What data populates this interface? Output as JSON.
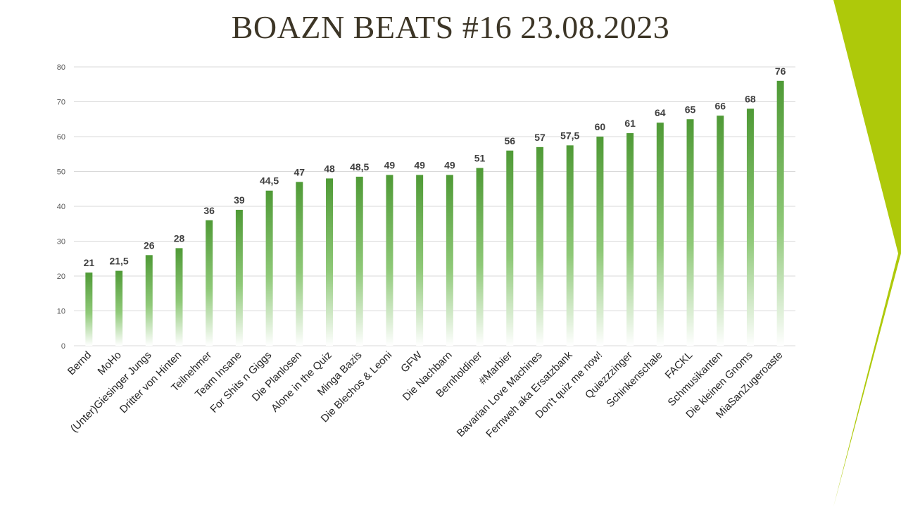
{
  "title": "BOAZN BEATS #16 23.08.2023",
  "colors": {
    "bar_top": "#4f9a36",
    "bar_bottom": "#ffffff",
    "accent": "#aec90a",
    "title": "#3c3526",
    "grid": "#d9d9d9"
  },
  "chart_data": {
    "type": "bar",
    "title": "BOAZN BEATS #16 23.08.2023",
    "xlabel": "",
    "ylabel": "",
    "ylim": [
      0,
      80
    ],
    "yticks": [
      0,
      10,
      20,
      30,
      40,
      50,
      60,
      70,
      80
    ],
    "grid": true,
    "categories": [
      "Bernd",
      "MoHo",
      "(Unter)Giesinger Jungs",
      "Dritter von Hinten",
      "Teilnehmer",
      "Team Insane",
      "For Shits n Giggs",
      "Die Planlosen",
      "Alone in the Quiz",
      "Minga Bazis",
      "Die Blechos & Leoni",
      "GFW",
      "Die Nachbarn",
      "Bernholdiner",
      "#Marbier",
      "Bavarian Love Machines",
      "Fernweh aka Ersatzbank",
      "Don't quiz me now!",
      "Quiezzzinger",
      "Schinkenschale",
      "FACKL",
      "Schmusikanten",
      "Die kleinen Gnoms",
      "MiaSanZugeroaste"
    ],
    "values": [
      21,
      21.5,
      26,
      28,
      36,
      39,
      44.5,
      47,
      48,
      48.5,
      49,
      49,
      49,
      51,
      56,
      57,
      57.5,
      60,
      61,
      64,
      65,
      66,
      68,
      76
    ],
    "data_labels": [
      "21",
      "21,5",
      "26",
      "28",
      "36",
      "39",
      "44,5",
      "47",
      "48",
      "48,5",
      "49",
      "49",
      "49",
      "51",
      "56",
      "57",
      "57,5",
      "60",
      "61",
      "64",
      "65",
      "66",
      "68",
      "76"
    ]
  }
}
